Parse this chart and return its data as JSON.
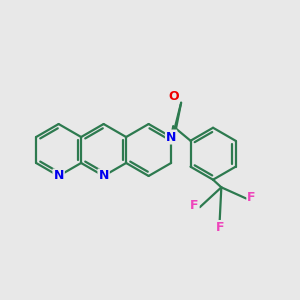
{
  "bg_color": "#e8e8e8",
  "bond_color": "#2d7a4f",
  "n_color": "#0000ee",
  "o_color": "#ee0000",
  "f_color": "#ee44bb",
  "lw": 1.6,
  "figsize": [
    3.0,
    3.0
  ],
  "dpi": 100,
  "xlim": [
    0,
    10
  ],
  "ylim": [
    1.5,
    9.0
  ]
}
